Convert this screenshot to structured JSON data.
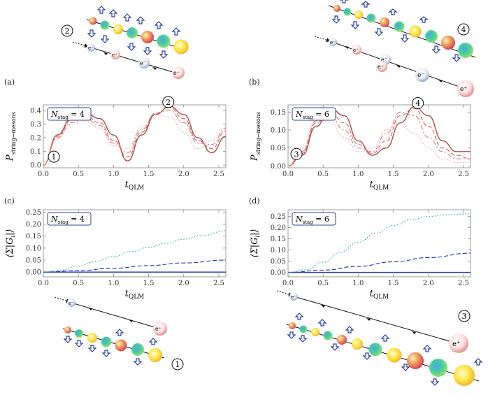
{
  "panel_labels": {
    "a": "(a)",
    "b": "(b)",
    "c": "(c)",
    "d": "(d)"
  },
  "markers": {
    "m1": "1",
    "m2": "2",
    "m3": "3",
    "m4": "4"
  },
  "particles": {
    "electron": "e⁻",
    "positron": "e⁺"
  },
  "axis_text": {
    "x_label": "t",
    "x_sub": "QLM",
    "y_label_P": "P",
    "y_sub_P": "string→mesons",
    "y_label_G": "⟨Σ|G",
    "y_label_G_sub": "i",
    "y_label_G_end": "|⟩"
  },
  "nstag_labels": {
    "four": "4",
    "six": "6",
    "prefix": "N",
    "sub": "stag",
    "eq": " = "
  },
  "chart_data": [
    {
      "id": "a",
      "type": "line",
      "xlabel": "tQLM",
      "ylabel": "P string→mesons",
      "xlim": [
        0,
        2.6
      ],
      "ylim": [
        -0.02,
        0.44
      ],
      "xticks": [
        "0.0",
        "0.5",
        "1.0",
        "1.5",
        "2.0",
        "2.5"
      ],
      "yticks": [
        "0.0",
        "0.1",
        "0.2",
        "0.3",
        "0.4"
      ],
      "annotation": "Nstag = 4",
      "series": [
        {
          "name": "solid",
          "style": "solid",
          "color": "#b04a4a",
          "x": [
            0,
            0.2,
            0.4,
            0.6,
            0.8,
            1.0,
            1.2,
            1.4,
            1.6,
            1.8,
            2.0,
            2.2,
            2.4,
            2.6
          ],
          "y": [
            0,
            0.22,
            0.34,
            0.38,
            0.34,
            0.22,
            0.03,
            0.22,
            0.37,
            0.43,
            0.37,
            0.2,
            0.09,
            0.21
          ]
        },
        {
          "name": "dashed",
          "style": "dashed",
          "color": "#d06060",
          "x": [
            0,
            0.2,
            0.4,
            0.6,
            0.8,
            1.0,
            1.2,
            1.4,
            1.6,
            1.8,
            2.0,
            2.2,
            2.4,
            2.6
          ],
          "y": [
            0,
            0.21,
            0.33,
            0.36,
            0.31,
            0.18,
            0.06,
            0.24,
            0.38,
            0.42,
            0.34,
            0.18,
            0.12,
            0.25
          ]
        },
        {
          "name": "dashdot",
          "style": "dashdot",
          "color": "#e07a7a",
          "x": [
            0,
            0.2,
            0.4,
            0.6,
            0.8,
            1.0,
            1.2,
            1.4,
            1.6,
            1.8,
            2.0,
            2.2,
            2.4,
            2.6
          ],
          "y": [
            0,
            0.2,
            0.31,
            0.34,
            0.29,
            0.16,
            0.09,
            0.26,
            0.38,
            0.4,
            0.31,
            0.16,
            0.15,
            0.27
          ]
        },
        {
          "name": "dotted",
          "style": "dotted",
          "color": "#f0a0a0",
          "x": [
            0,
            0.2,
            0.4,
            0.6,
            0.8,
            1.0,
            1.2,
            1.4,
            1.6,
            1.8,
            2.0,
            2.2,
            2.4,
            2.6
          ],
          "y": [
            0,
            0.19,
            0.3,
            0.32,
            0.27,
            0.14,
            0.12,
            0.28,
            0.37,
            0.35,
            0.24,
            0.12,
            0.18,
            0.28
          ]
        }
      ]
    },
    {
      "id": "b",
      "type": "line",
      "xlabel": "tQLM",
      "ylabel": "P string→mesons",
      "xlim": [
        0,
        2.6
      ],
      "ylim": [
        -0.005,
        0.17
      ],
      "xticks": [
        "0.0",
        "0.5",
        "1.0",
        "1.5",
        "2.0",
        "2.5"
      ],
      "yticks": [
        "0.00",
        "0.05",
        "0.10",
        "0.15"
      ],
      "annotation": "Nstag = 6",
      "series": [
        {
          "name": "solid",
          "style": "solid",
          "color": "#b04a4a",
          "x": [
            0,
            0.2,
            0.4,
            0.6,
            0.8,
            1.0,
            1.2,
            1.4,
            1.6,
            1.8,
            2.0,
            2.2,
            2.4,
            2.6
          ],
          "y": [
            0,
            0.03,
            0.11,
            0.16,
            0.14,
            0.07,
            0.03,
            0.05,
            0.12,
            0.165,
            0.14,
            0.07,
            0.04,
            0.04
          ]
        },
        {
          "name": "dashed",
          "style": "dashed",
          "color": "#d06060",
          "x": [
            0,
            0.2,
            0.4,
            0.6,
            0.8,
            1.0,
            1.2,
            1.4,
            1.6,
            1.8,
            2.0,
            2.2,
            2.4,
            2.6
          ],
          "y": [
            0,
            0.035,
            0.12,
            0.15,
            0.12,
            0.06,
            0.035,
            0.07,
            0.14,
            0.16,
            0.11,
            0.05,
            0.03,
            0.02
          ]
        },
        {
          "name": "dashdot",
          "style": "dashdot",
          "color": "#e07a7a",
          "x": [
            0,
            0.2,
            0.4,
            0.6,
            0.8,
            1.0,
            1.2,
            1.4,
            1.6,
            1.8,
            2.0,
            2.2,
            2.4,
            2.6
          ],
          "y": [
            0,
            0.04,
            0.125,
            0.14,
            0.1,
            0.05,
            0.04,
            0.09,
            0.15,
            0.14,
            0.08,
            0.04,
            0.02,
            0.02
          ]
        },
        {
          "name": "dotted",
          "style": "dotted",
          "color": "#f0a0a0",
          "x": [
            0,
            0.2,
            0.4,
            0.6,
            0.8,
            1.0,
            1.2,
            1.4,
            1.6,
            1.8,
            2.0,
            2.2,
            2.4,
            2.6
          ],
          "y": [
            0,
            0.05,
            0.13,
            0.12,
            0.08,
            0.04,
            0.05,
            0.1,
            0.12,
            0.09,
            0.05,
            0.02,
            0.01,
            0.01
          ]
        }
      ]
    },
    {
      "id": "c",
      "type": "line",
      "xlabel": "tQLM",
      "ylabel": "⟨Σ|Gi|⟩",
      "xlim": [
        0,
        2.6
      ],
      "ylim": [
        -0.02,
        0.26
      ],
      "xticks": [
        "0.0",
        "0.5",
        "1.0",
        "1.5",
        "2.0",
        "2.5"
      ],
      "yticks": [
        "0.00",
        "0.05",
        "0.10",
        "0.15",
        "0.20",
        "0.25"
      ],
      "annotation": "Nstag = 4",
      "series": [
        {
          "name": "solid",
          "style": "solid",
          "color": "#1f2fb0",
          "x": [
            0,
            2.6
          ],
          "y": [
            0,
            0
          ]
        },
        {
          "name": "dashed",
          "style": "dashed",
          "color": "#2030c0",
          "x": [
            0,
            0.5,
            1.0,
            1.5,
            2.0,
            2.6
          ],
          "y": [
            0,
            0.006,
            0.016,
            0.027,
            0.038,
            0.05
          ]
        },
        {
          "name": "dotted",
          "style": "dotted",
          "color": "#20a8a8",
          "x": [
            0,
            0.25,
            0.5,
            0.75,
            1.0,
            1.25,
            1.5,
            1.75,
            2.0,
            2.25,
            2.6
          ],
          "y": [
            0,
            0.008,
            0.025,
            0.045,
            0.065,
            0.085,
            0.103,
            0.12,
            0.137,
            0.152,
            0.172
          ]
        }
      ]
    },
    {
      "id": "d",
      "type": "line",
      "xlabel": "tQLM",
      "ylabel": "⟨Σ|Gi|⟩",
      "xlim": [
        0,
        2.6
      ],
      "ylim": [
        -0.02,
        0.28
      ],
      "xticks": [
        "0.0",
        "0.5",
        "1.0",
        "1.5",
        "2.0",
        "2.5"
      ],
      "yticks": [
        "0.00",
        "0.05",
        "0.10",
        "0.15",
        "0.20",
        "0.25"
      ],
      "annotation": "Nstag = 6",
      "series": [
        {
          "name": "solid",
          "style": "solid",
          "color": "#1f2fb0",
          "x": [
            0,
            2.6
          ],
          "y": [
            0,
            0
          ]
        },
        {
          "name": "dashed",
          "style": "dashed",
          "color": "#2030c0",
          "x": [
            0,
            0.5,
            1.0,
            1.5,
            2.0,
            2.6
          ],
          "y": [
            0,
            0.01,
            0.027,
            0.047,
            0.066,
            0.086
          ]
        },
        {
          "name": "dotted",
          "style": "dotted",
          "color": "#20a8a8",
          "x": [
            0,
            0.25,
            0.5,
            0.75,
            1.0,
            1.25,
            1.5,
            1.75,
            2.0,
            2.25,
            2.6
          ],
          "y": [
            0,
            0.012,
            0.045,
            0.09,
            0.135,
            0.175,
            0.21,
            0.235,
            0.25,
            0.258,
            0.262
          ]
        }
      ]
    }
  ]
}
